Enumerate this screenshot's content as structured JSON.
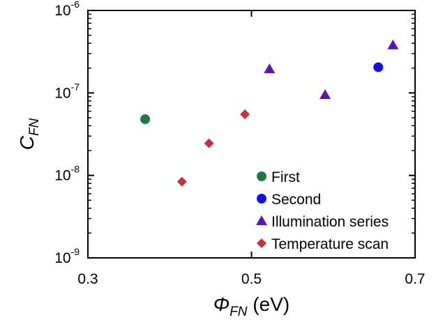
{
  "chart_data": {
    "type": "scatter",
    "title": "",
    "xlabel": {
      "main": "Φ",
      "sub": "FN",
      "unit": " (eV)"
    },
    "ylabel": {
      "main": "C",
      "sub": "FN"
    },
    "xlim": [
      0.3,
      0.7
    ],
    "ylim": [
      1e-09,
      1e-06
    ],
    "yscale": "log",
    "grid": false,
    "legend_position": "lower-right",
    "x_ticks": [
      {
        "value": 0.3,
        "label": "0.3"
      },
      {
        "value": 0.5,
        "label": "0.5"
      },
      {
        "value": 0.7,
        "label": "0.7"
      }
    ],
    "y_ticks": [
      {
        "value": 1e-09,
        "base": "10",
        "exp": "-9"
      },
      {
        "value": 1e-08,
        "base": "10",
        "exp": "-8"
      },
      {
        "value": 1e-07,
        "base": "10",
        "exp": "-7"
      },
      {
        "value": 1e-06,
        "base": "10",
        "exp": "-6"
      }
    ],
    "series": [
      {
        "name": "First",
        "marker": "circle",
        "color": "#1e7a45",
        "points": [
          {
            "x": 0.37,
            "y": 4.8e-08
          }
        ]
      },
      {
        "name": "Second",
        "marker": "circle",
        "color": "#1010e8",
        "points": [
          {
            "x": 0.655,
            "y": 2.05e-07
          }
        ]
      },
      {
        "name": "Illumination series",
        "marker": "triangle",
        "color": "#5b17ad",
        "points": [
          {
            "x": 0.522,
            "y": 1.95e-07
          },
          {
            "x": 0.59,
            "y": 9.5e-08
          },
          {
            "x": 0.673,
            "y": 3.8e-07
          }
        ]
      },
      {
        "name": "Temperature scan",
        "marker": "diamond",
        "color": "#c9303c",
        "points": [
          {
            "x": 0.415,
            "y": 8.4e-09
          },
          {
            "x": 0.448,
            "y": 2.45e-08
          },
          {
            "x": 0.492,
            "y": 5.5e-08
          }
        ]
      }
    ]
  }
}
